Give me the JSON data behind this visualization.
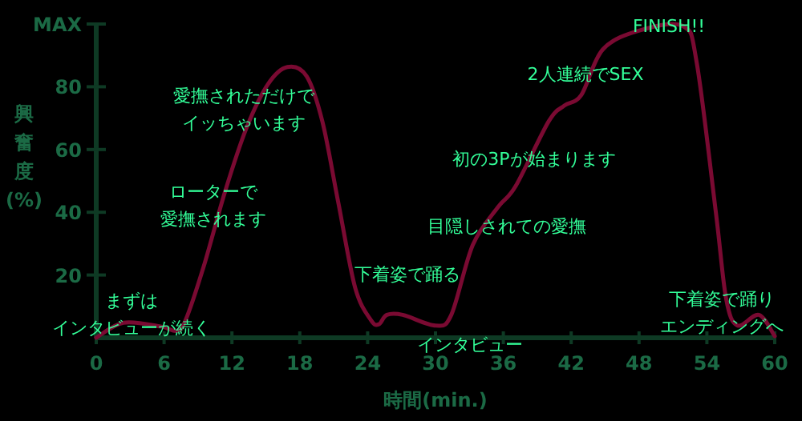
{
  "chart_data": {
    "type": "line",
    "xlabel": "時間(min.)",
    "ylabel": "興奮度(%)",
    "x": [
      0,
      2.4,
      5.7,
      7.1,
      7.9,
      9.5,
      11.4,
      13.3,
      15.2,
      16.9,
      18.6,
      20,
      21.4,
      22.9,
      24.3,
      25,
      25.7,
      27.1,
      30,
      31.4,
      33.3,
      35.5,
      37.1,
      40,
      41.4,
      42.9,
      44.8,
      48.1,
      51.9,
      53.1,
      54.8,
      55.7,
      56.7,
      58.6,
      60
    ],
    "series": [
      {
        "color": "#7a0a32",
        "values": [
          0,
          4.8,
          3.6,
          2.2,
          5.6,
          22.7,
          46.7,
          67,
          80.9,
          86.3,
          83.4,
          68.9,
          43.2,
          15.9,
          5.6,
          4.3,
          7.3,
          7.3,
          3.9,
          7.3,
          29.6,
          41.5,
          48.4,
          68.9,
          74,
          77.4,
          91.9,
          98,
          99.3,
          87.7,
          39.8,
          12.5,
          3.9,
          7.3,
          0.5
        ]
      }
    ],
    "xlim": [
      0,
      60
    ],
    "ylim": [
      0,
      100
    ],
    "xticks": [
      0,
      6,
      12,
      18,
      24,
      30,
      36,
      42,
      48,
      54,
      60
    ],
    "yticks": [
      20,
      40,
      60,
      80,
      {
        "value": 100,
        "label": "MAX"
      }
    ],
    "annotations": [
      "まずはインタビューが続く",
      "ローターで愛撫されます",
      "愛撫されただけでイッちゃいます",
      "下着姿で踊る",
      "インタビュー",
      "目隠しされての愛撫",
      "初の3Pが始まります",
      "2人連続でSEX",
      "FINISH!!",
      "下着姿で踊りエンディングへ"
    ]
  }
}
